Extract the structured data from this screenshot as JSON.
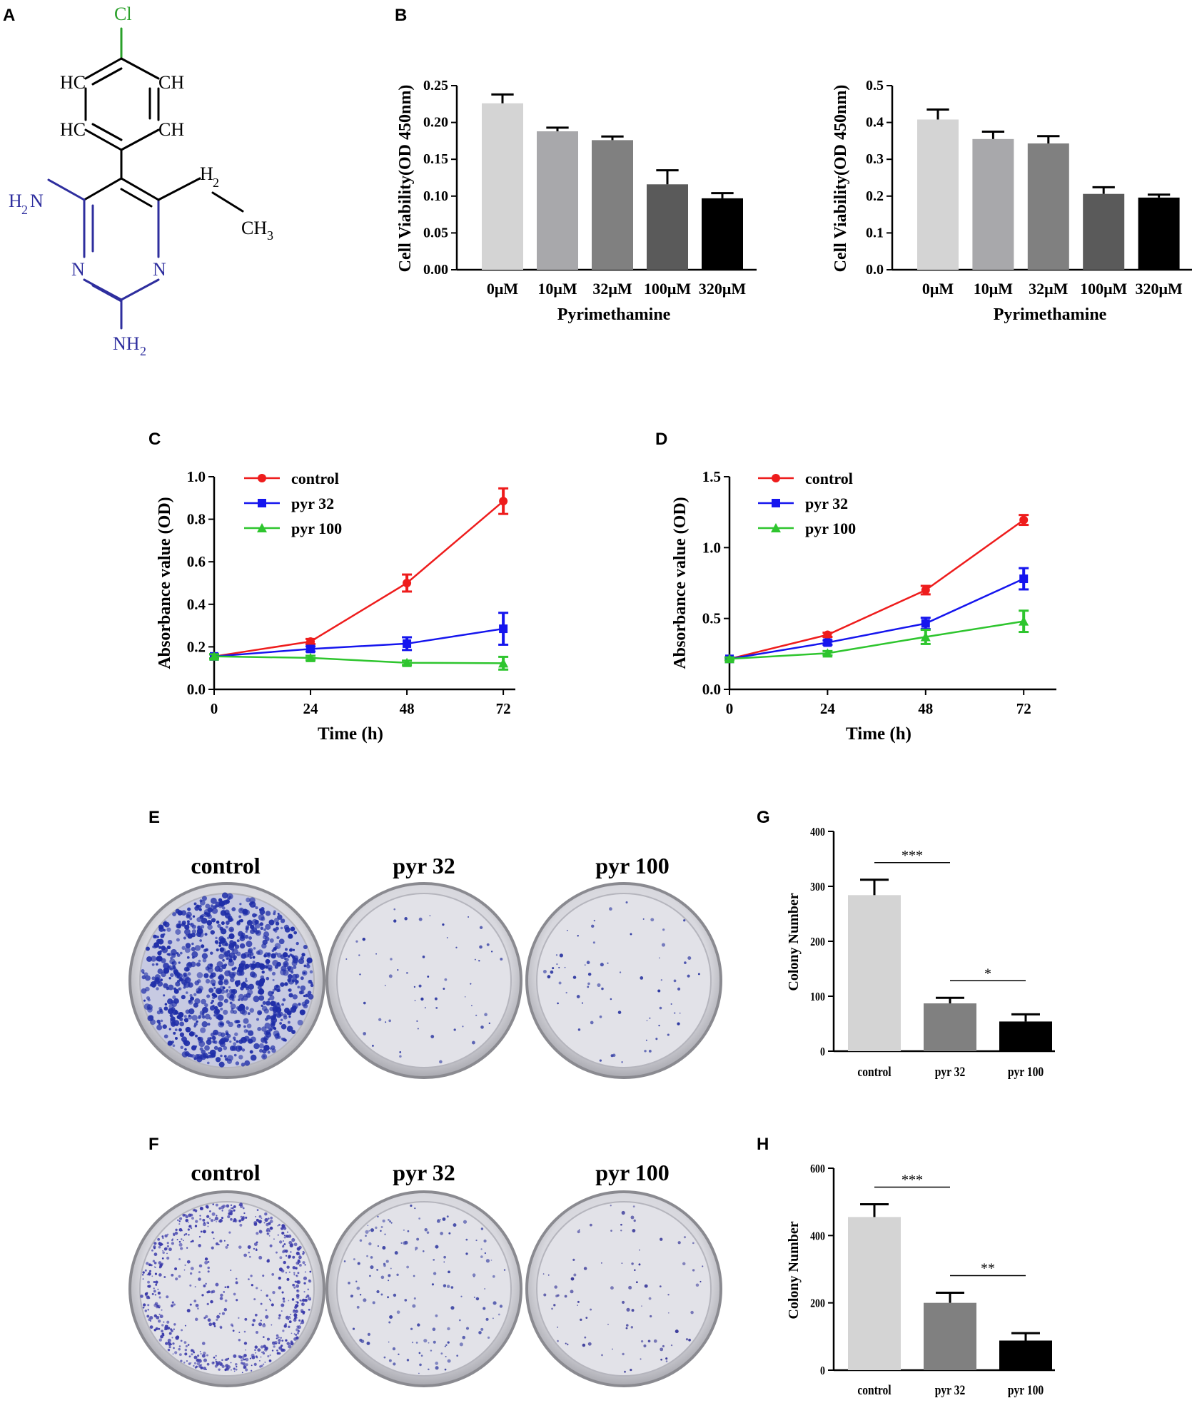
{
  "panels": {
    "A": "A",
    "B": "B",
    "C": "C",
    "D": "D",
    "E": "E",
    "F": "F",
    "G": "G",
    "H": "H"
  },
  "molecule": {
    "atoms": {
      "cl": "Cl",
      "hc_upper_left": "HC",
      "ch_upper_right": "CH",
      "hc_lower_left": "HC",
      "ch_lower_right": "CH",
      "h2_label": "H",
      "h2_sub": "2",
      "ch3_label": "CH",
      "ch3_sub": "3",
      "h2n_label": "H",
      "h2n_sub": "2",
      "h2n_n": "N",
      "n_left": "N",
      "n_right": "N",
      "nh2_label": "NH",
      "nh2_sub": "2"
    },
    "colors": {
      "chlorine": "#2aa02a",
      "nitrogen": "#2e2e9e",
      "carbon": "#000000"
    }
  },
  "dish_labels_E": [
    "control",
    "pyr 32",
    "pyr 100"
  ],
  "dish_labels_F": [
    "control",
    "pyr 32",
    "pyr 100"
  ],
  "chart_data": [
    {
      "id": "B-left",
      "type": "bar",
      "categories": [
        "0μM",
        "10μM",
        "32μM",
        "100μM",
        "320μM"
      ],
      "values": [
        0.226,
        0.188,
        0.176,
        0.116,
        0.097
      ],
      "errors": [
        0.012,
        0.005,
        0.005,
        0.019,
        0.007
      ],
      "colors": [
        "#d4d4d4",
        "#a8a8ab",
        "#808080",
        "#5a5a5a",
        "#000000"
      ],
      "xlabel": "Pyrimethamine",
      "ylabel": "Cell Viability(OD 450nm)",
      "ylim": [
        0,
        0.25
      ],
      "yticks": [
        "0.00",
        "0.05",
        "0.10",
        "0.15",
        "0.20",
        "0.25"
      ]
    },
    {
      "id": "B-right",
      "type": "bar",
      "categories": [
        "0μM",
        "10μM",
        "32μM",
        "100μM",
        "320μM"
      ],
      "values": [
        0.408,
        0.355,
        0.343,
        0.206,
        0.196
      ],
      "errors": [
        0.027,
        0.02,
        0.02,
        0.018,
        0.008
      ],
      "colors": [
        "#d4d4d4",
        "#a8a8ab",
        "#808080",
        "#5a5a5a",
        "#000000"
      ],
      "xlabel": "Pyrimethamine",
      "ylabel": "Cell Viability(OD 450nm)",
      "ylim": [
        0,
        0.5
      ],
      "yticks": [
        "0.0",
        "0.1",
        "0.2",
        "0.3",
        "0.4",
        "0.5"
      ]
    },
    {
      "id": "C",
      "type": "line",
      "x": [
        0,
        24,
        48,
        72
      ],
      "xticks": [
        "0",
        "24",
        "48",
        "72"
      ],
      "xlim": [
        0,
        75
      ],
      "ylim": [
        0,
        1.0
      ],
      "yticks": [
        "0.0",
        "0.2",
        "0.4",
        "0.6",
        "0.8",
        "1.0"
      ],
      "xlabel": "Time (h)",
      "ylabel": "Absorbance value (OD)",
      "legend": "top-left",
      "series": [
        {
          "name": "control",
          "color": "#ee1c1c",
          "marker": "circle",
          "values": [
            0.155,
            0.225,
            0.5,
            0.885
          ],
          "errors": [
            0.01,
            0.012,
            0.04,
            0.06
          ]
        },
        {
          "name": "pyr 32",
          "color": "#1515ee",
          "marker": "square",
          "values": [
            0.155,
            0.19,
            0.215,
            0.285
          ],
          "errors": [
            0.01,
            0.012,
            0.03,
            0.075
          ]
        },
        {
          "name": "pyr 100",
          "color": "#2ec52e",
          "marker": "triangle",
          "values": [
            0.155,
            0.148,
            0.125,
            0.123
          ],
          "errors": [
            0.01,
            0.01,
            0.01,
            0.03
          ]
        }
      ]
    },
    {
      "id": "D",
      "type": "line",
      "x": [
        0,
        24,
        48,
        72
      ],
      "xticks": [
        "0",
        "24",
        "48",
        "72"
      ],
      "xlim": [
        0,
        80
      ],
      "ylim": [
        0,
        1.5
      ],
      "yticks": [
        "0.0",
        "0.5",
        "1.0",
        "1.5"
      ],
      "xlabel": "Time (h)",
      "ylabel": "Absorbance value (OD)",
      "legend": "top-left",
      "series": [
        {
          "name": "control",
          "color": "#ee1c1c",
          "marker": "circle",
          "values": [
            0.215,
            0.385,
            0.7,
            1.195
          ],
          "errors": [
            0.01,
            0.015,
            0.03,
            0.035
          ]
        },
        {
          "name": "pyr 32",
          "color": "#1515ee",
          "marker": "square",
          "values": [
            0.215,
            0.33,
            0.465,
            0.78
          ],
          "errors": [
            0.01,
            0.015,
            0.04,
            0.075
          ]
        },
        {
          "name": "pyr 100",
          "color": "#2ec52e",
          "marker": "triangle",
          "values": [
            0.215,
            0.255,
            0.37,
            0.48
          ],
          "errors": [
            0.01,
            0.015,
            0.05,
            0.075
          ]
        }
      ]
    },
    {
      "id": "G",
      "type": "bar",
      "categories": [
        "control",
        "pyr 32",
        "pyr 100"
      ],
      "values": [
        284,
        87,
        54
      ],
      "errors": [
        28,
        10,
        13
      ],
      "colors": [
        "#d4d4d4",
        "#808080",
        "#000000"
      ],
      "ylabel": "Colony Number",
      "ylim": [
        0,
        400
      ],
      "yticks": [
        "0",
        "100",
        "200",
        "300",
        "400"
      ],
      "significance": [
        {
          "from": 0,
          "to": 1,
          "label": "***"
        },
        {
          "from": 1,
          "to": 2,
          "label": "*"
        }
      ]
    },
    {
      "id": "H",
      "type": "bar",
      "categories": [
        "control",
        "pyr 32",
        "pyr 100"
      ],
      "values": [
        455,
        200,
        88
      ],
      "errors": [
        38,
        30,
        22
      ],
      "colors": [
        "#d4d4d4",
        "#808080",
        "#000000"
      ],
      "ylabel": "Colony Number",
      "ylim": [
        0,
        600
      ],
      "yticks": [
        "0",
        "200",
        "400",
        "600"
      ],
      "significance": [
        {
          "from": 0,
          "to": 1,
          "label": "***"
        },
        {
          "from": 1,
          "to": 2,
          "label": "**"
        }
      ]
    }
  ]
}
